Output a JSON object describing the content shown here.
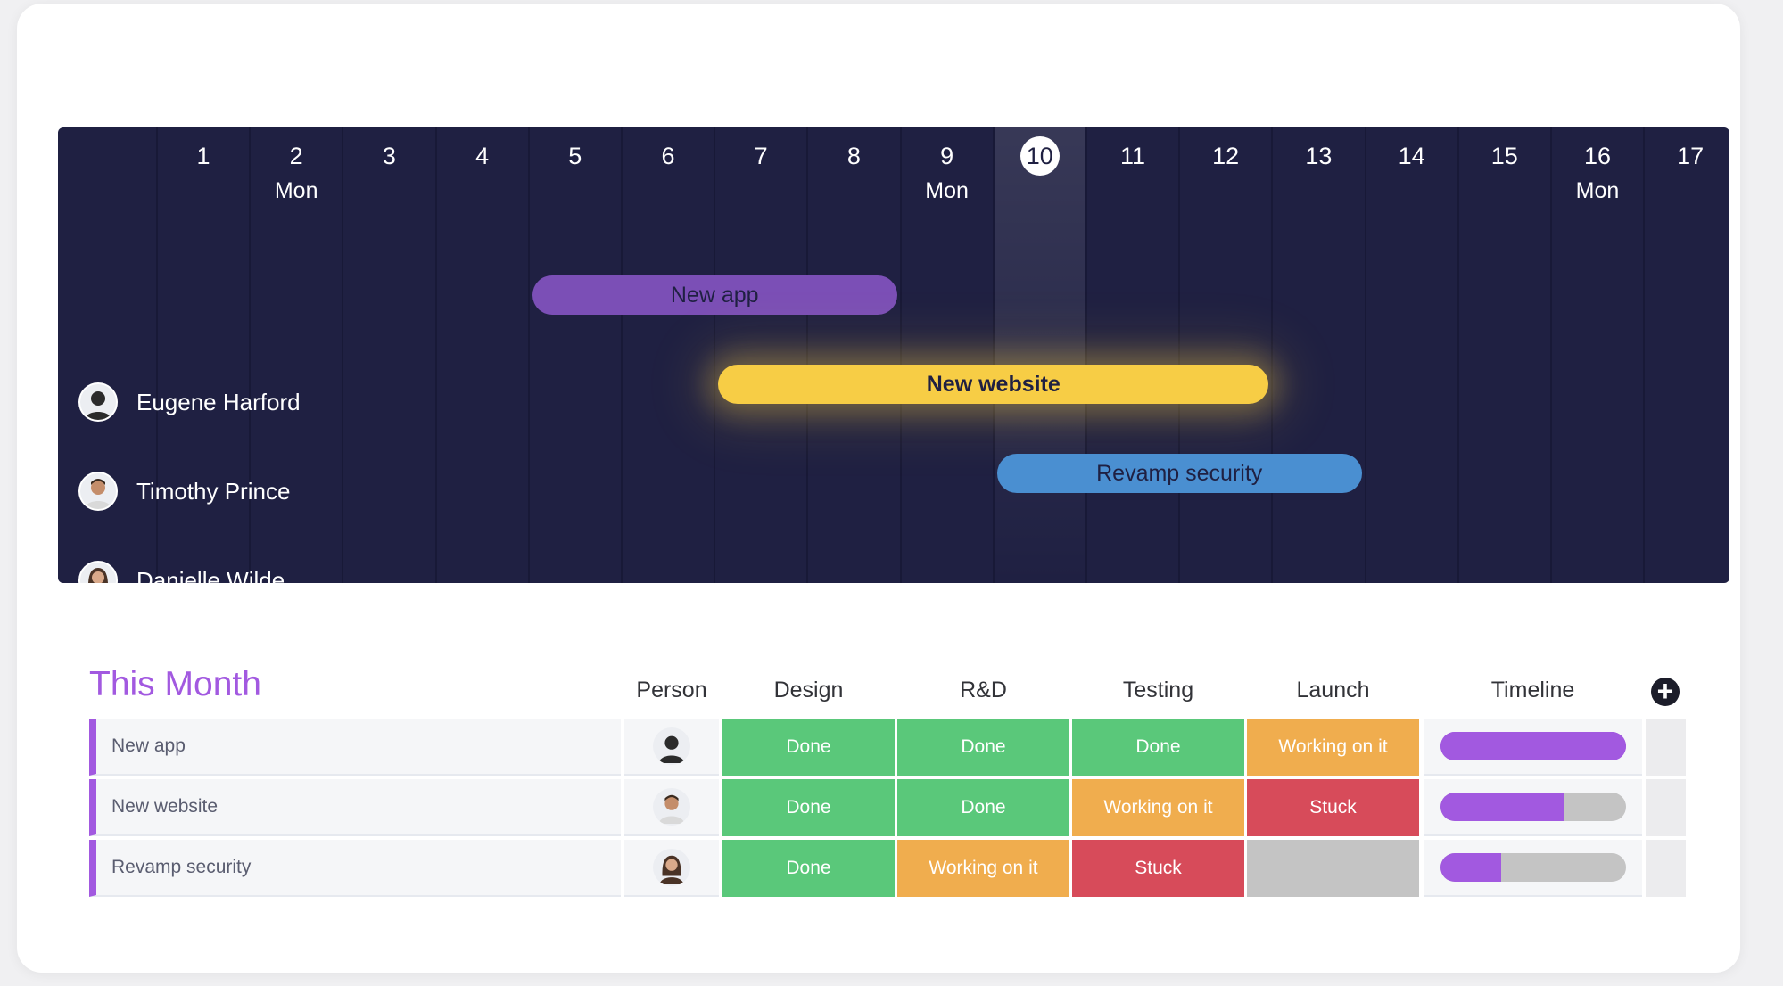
{
  "colors": {
    "gantt_bg": "#1f2042",
    "group_accent": "#a259e0",
    "status_done": "#5ac87a",
    "status_working": "#f0ad4e",
    "status_stuck": "#d74b5a",
    "status_empty": "#c4c4c4",
    "bar_purple": "#7b4fb6",
    "bar_yellow": "#f7cd45",
    "bar_blue": "#4a8fd1"
  },
  "gantt": {
    "days": [
      {
        "num": "1",
        "name": ""
      },
      {
        "num": "2",
        "name": "Mon"
      },
      {
        "num": "3",
        "name": ""
      },
      {
        "num": "4",
        "name": ""
      },
      {
        "num": "5",
        "name": ""
      },
      {
        "num": "6",
        "name": ""
      },
      {
        "num": "7",
        "name": ""
      },
      {
        "num": "8",
        "name": ""
      },
      {
        "num": "9",
        "name": "Mon"
      },
      {
        "num": "10",
        "name": "",
        "today": true
      },
      {
        "num": "11",
        "name": ""
      },
      {
        "num": "12",
        "name": ""
      },
      {
        "num": "13",
        "name": ""
      },
      {
        "num": "14",
        "name": ""
      },
      {
        "num": "15",
        "name": ""
      },
      {
        "num": "16",
        "name": "Mon"
      },
      {
        "num": "17",
        "name": ""
      }
    ],
    "people": [
      {
        "name": "Eugene Harford",
        "avatar": "avatar-eugene"
      },
      {
        "name": "Timothy Prince",
        "avatar": "avatar-timothy"
      },
      {
        "name": "Danielle Wilde",
        "avatar": "avatar-danielle"
      }
    ],
    "bars": [
      {
        "label": "New app",
        "start_day": 5,
        "end_day": 8,
        "color": "purple"
      },
      {
        "label": "New website",
        "start_day": 7,
        "end_day": 12,
        "color": "yellow"
      },
      {
        "label": "Revamp security",
        "start_day": 10,
        "end_day": 13,
        "color": "blue"
      }
    ]
  },
  "table": {
    "group_title": "This Month",
    "columns": {
      "person": "Person",
      "design": "Design",
      "rnd": "R&D",
      "testing": "Testing",
      "launch": "Launch",
      "timeline": "Timeline"
    },
    "add_column_icon": "plus-circle-icon",
    "rows": [
      {
        "name": "New app",
        "design": "Done",
        "rnd": "Done",
        "testing": "Done",
        "launch": "Working on it",
        "timeline_progress": 1.0
      },
      {
        "name": "New website",
        "design": "Done",
        "rnd": "Done",
        "testing": "Working on it",
        "launch": "Stuck",
        "timeline_progress": 0.67
      },
      {
        "name": "Revamp security",
        "design": "Done",
        "rnd": "Working on it",
        "testing": "Stuck",
        "launch": "",
        "timeline_progress": 0.33
      }
    ]
  }
}
